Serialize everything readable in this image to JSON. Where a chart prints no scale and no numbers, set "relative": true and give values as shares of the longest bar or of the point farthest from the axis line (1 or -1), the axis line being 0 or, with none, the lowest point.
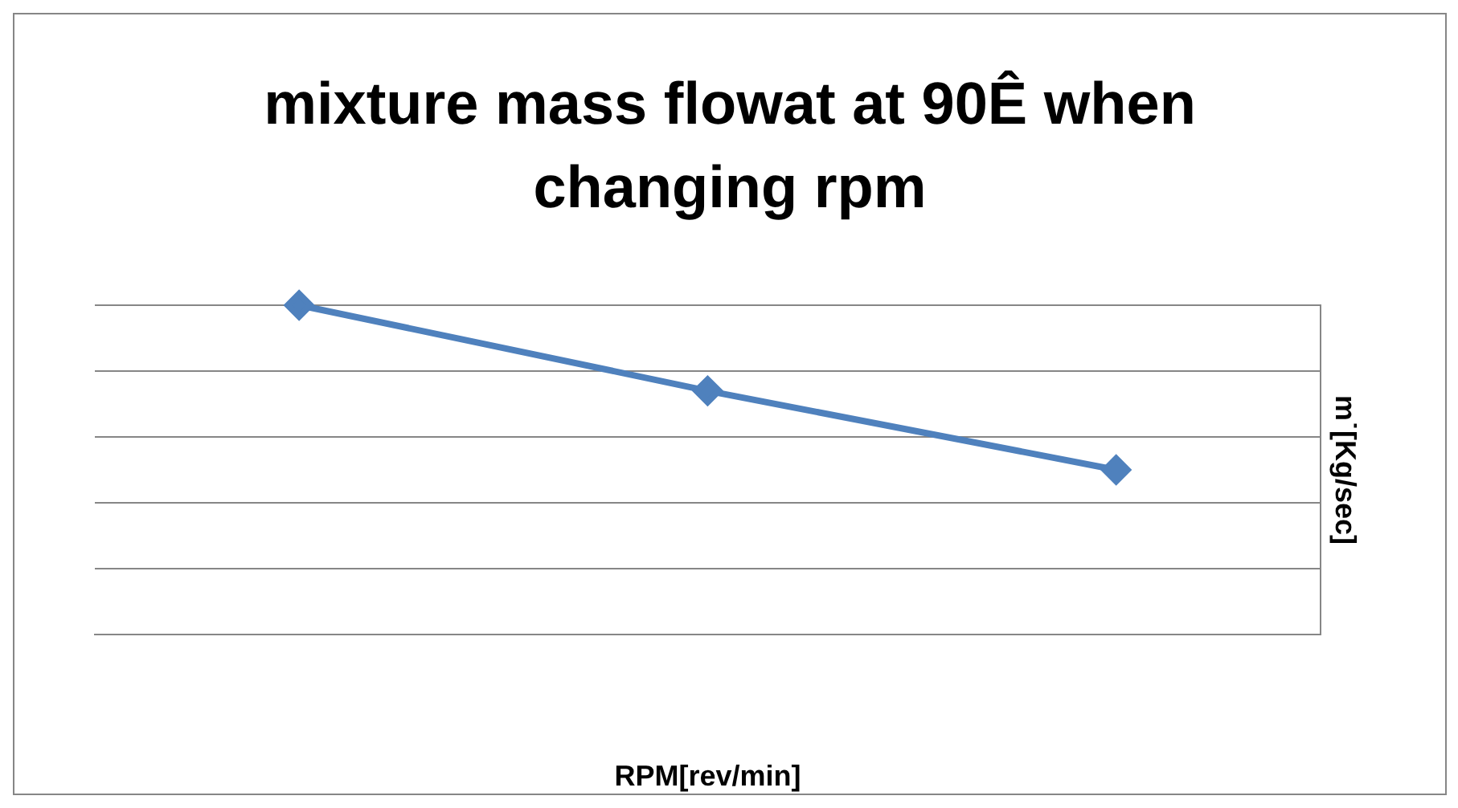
{
  "chart_data": {
    "type": "line",
    "title": "mixture mass flowat at 90Ê when changing rpm",
    "xlabel": "RPM[rev/min]",
    "ylabel": "m˙[Kg/sec]",
    "relative": true,
    "categories": [
      null,
      null,
      null
    ],
    "series": [
      {
        "color": "#4f81bd",
        "values": [
          1,
          0.74,
          0.5
        ]
      }
    ],
    "marker": "diamond",
    "grid": "y",
    "legend": false
  }
}
